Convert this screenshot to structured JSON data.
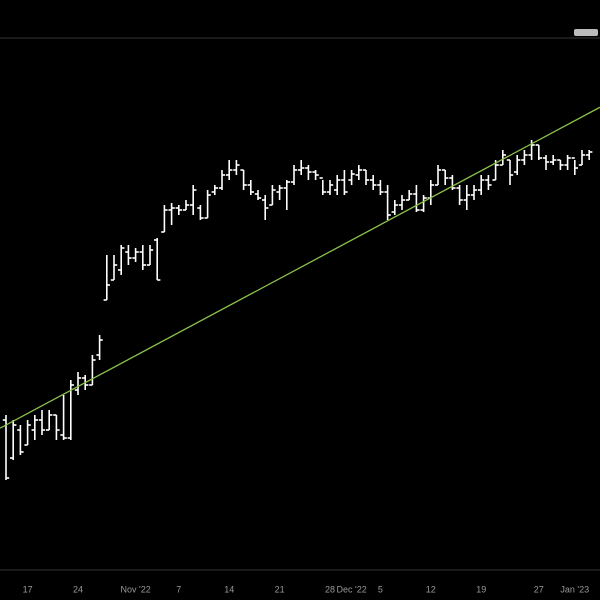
{
  "chart_data": {
    "type": "ohlc",
    "color": "#ffffff",
    "categories": [
      null,
      null,
      null,
      "17",
      null,
      null,
      null,
      null,
      null,
      null,
      "24",
      null,
      null,
      null,
      null,
      null,
      null,
      null,
      "Nov '22",
      null,
      null,
      null,
      null,
      null,
      "7",
      null,
      null,
      null,
      null,
      null,
      null,
      "14",
      null,
      null,
      null,
      null,
      null,
      null,
      "21",
      null,
      null,
      null,
      null,
      null,
      null,
      "28",
      null,
      null,
      "Dec '22",
      null,
      null,
      null,
      "5",
      null,
      null,
      null,
      null,
      null,
      null,
      "12",
      null,
      null,
      null,
      null,
      null,
      null,
      "19",
      null,
      null,
      null,
      null,
      null,
      null,
      null,
      "27",
      null,
      null,
      null,
      null,
      "Jan '23",
      null,
      null
    ],
    "open": [
      150,
      112,
      140,
      125,
      140,
      150,
      140,
      155,
      135,
      132,
      180,
      192,
      185,
      215,
      270,
      290,
      300,
      318,
      312,
      318,
      305,
      330,
      338,
      360,
      362,
      360,
      365,
      362,
      352,
      378,
      382,
      395,
      400,
      400,
      385,
      376,
      370,
      365,
      378,
      382,
      388,
      400,
      402,
      398,
      392,
      378,
      380,
      390,
      390,
      395,
      400,
      390,
      385,
      378,
      358,
      365,
      370,
      376,
      360,
      372,
      385,
      400,
      392,
      382,
      370,
      375,
      380,
      390,
      390,
      405,
      410,
      398,
      410,
      415,
      425,
      412,
      408,
      410,
      405,
      412,
      405,
      415
    ],
    "high": [
      155,
      150,
      145,
      150,
      155,
      160,
      160,
      155,
      175,
      190,
      198,
      195,
      215,
      235,
      315,
      315,
      325,
      325,
      322,
      325,
      325,
      332,
      365,
      367,
      365,
      370,
      385,
      365,
      380,
      385,
      400,
      410,
      410,
      400,
      390,
      380,
      375,
      385,
      385,
      390,
      405,
      410,
      405,
      400,
      390,
      390,
      395,
      400,
      400,
      405,
      400,
      395,
      390,
      385,
      370,
      375,
      380,
      385,
      375,
      390,
      405,
      400,
      395,
      385,
      385,
      385,
      395,
      395,
      410,
      420,
      410,
      415,
      420,
      430,
      425,
      415,
      415,
      410,
      415,
      410,
      420,
      420
    ],
    "low": [
      90,
      110,
      115,
      125,
      130,
      135,
      140,
      130,
      130,
      130,
      175,
      180,
      185,
      210,
      270,
      290,
      295,
      305,
      308,
      300,
      305,
      290,
      338,
      345,
      355,
      360,
      355,
      350,
      352,
      375,
      380,
      390,
      395,
      380,
      375,
      370,
      350,
      365,
      370,
      360,
      385,
      395,
      390,
      390,
      375,
      375,
      375,
      375,
      385,
      390,
      385,
      380,
      375,
      350,
      355,
      360,
      370,
      358,
      358,
      365,
      385,
      385,
      380,
      365,
      360,
      370,
      375,
      380,
      390,
      405,
      385,
      395,
      405,
      410,
      410,
      400,
      405,
      400,
      400,
      395,
      405,
      410
    ],
    "close": [
      92,
      145,
      118,
      145,
      150,
      140,
      155,
      140,
      132,
      185,
      192,
      185,
      210,
      230,
      285,
      305,
      322,
      312,
      318,
      305,
      320,
      290,
      360,
      362,
      360,
      365,
      380,
      352,
      375,
      382,
      395,
      400,
      405,
      385,
      378,
      372,
      362,
      380,
      382,
      388,
      400,
      402,
      398,
      395,
      378,
      385,
      390,
      378,
      396,
      400,
      390,
      385,
      378,
      355,
      365,
      370,
      376,
      360,
      372,
      385,
      400,
      392,
      382,
      370,
      375,
      380,
      390,
      385,
      405,
      415,
      395,
      410,
      415,
      425,
      412,
      408,
      410,
      405,
      412,
      402,
      415,
      418
    ],
    "ylim": [
      0,
      570
    ],
    "trendline": {
      "color": "#8bc34a",
      "values": [
        145,
        457
      ]
    }
  }
}
